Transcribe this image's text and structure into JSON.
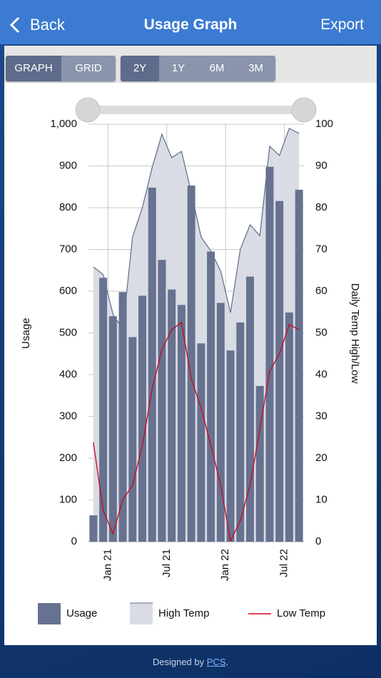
{
  "header": {
    "back": "Back",
    "title": "Usage Graph",
    "export": "Export"
  },
  "tabs": {
    "view": [
      "GRAPH",
      "GRID"
    ],
    "range": [
      "2Y",
      "1Y",
      "6M",
      "3M"
    ]
  },
  "chart_data": {
    "type": "bar",
    "y_label": "Usage",
    "y2_label": "Daily Temp High/Low",
    "x": [
      0,
      1,
      2,
      3,
      4,
      5,
      6,
      7,
      8,
      9,
      10,
      11,
      12,
      13,
      14,
      15,
      16,
      17,
      18,
      19,
      20,
      21
    ],
    "xlim": [
      -0.5,
      21.5
    ],
    "xticks": [
      {
        "value": 1.5,
        "label": "Jan 21"
      },
      {
        "value": 7.5,
        "label": "Jul 21"
      },
      {
        "value": 13.5,
        "label": "Jan 22"
      },
      {
        "value": 19.5,
        "label": "Jul 22"
      }
    ],
    "ylim": [
      0,
      1000
    ],
    "yticks": [
      0,
      100,
      200,
      300,
      400,
      500,
      600,
      700,
      800,
      900,
      {
        "value": 1000,
        "label": "1,000"
      }
    ],
    "y2lim": [
      0,
      100
    ],
    "y2ticks": [
      0,
      10,
      20,
      30,
      40,
      50,
      60,
      70,
      80,
      90,
      100
    ],
    "grid": true,
    "series": [
      {
        "name": "Usage",
        "type": "bar",
        "color": "#66728f",
        "values": [
          63,
          632,
          540,
          598,
          490,
          589,
          848,
          675,
          604,
          567,
          853,
          475,
          695,
          572,
          458,
          525,
          635,
          373,
          898,
          816,
          549,
          843
        ]
      },
      {
        "name": "High Temp",
        "type": "area",
        "axis": "y2",
        "color": "#d9dce4",
        "values": [
          65.8,
          64,
          54.5,
          50.8,
          73,
          80,
          89.6,
          97.6,
          92,
          93.5,
          83.6,
          73,
          69.6,
          64.8,
          54.9,
          70,
          75.9,
          73.3,
          94.7,
          92.5,
          99,
          97.8
        ]
      },
      {
        "name": "Low Temp",
        "type": "line",
        "axis": "y2",
        "color": "#d0021b",
        "values": [
          23.8,
          7.5,
          1.9,
          10,
          13.5,
          23,
          36.6,
          46,
          50.8,
          52.5,
          39,
          32,
          23,
          13.5,
          0.2,
          5,
          13.5,
          27,
          40.8,
          45,
          52,
          50.8
        ]
      }
    ]
  },
  "footer": {
    "prefix": "Designed by",
    "link": "PCS",
    "suffix": "."
  }
}
